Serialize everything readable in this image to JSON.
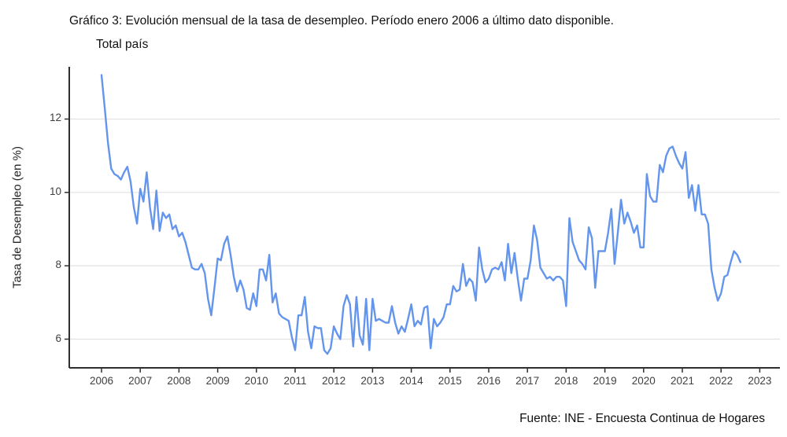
{
  "title": {
    "line1": "Gráfico 3: Evolución mensual de la tasa de desempleo. Período enero 2006 a último dato disponible.",
    "line2": "Total país"
  },
  "source": "Fuente: INE - Encuesta Continua de Hogares",
  "chart_data": {
    "type": "line",
    "title": "Gráfico 3: Evolución mensual de la tasa de desempleo. Período enero 2006 a último dato disponible. Total país",
    "xlabel": "",
    "ylabel": "Tasa de Desempleo (en %)",
    "legend": "none",
    "grid": true,
    "grid_color": "#e2e2e2",
    "axis_color": "#2f2f2f",
    "line_color": "#6495ED",
    "xlim": [
      2005.17,
      2023.5
    ],
    "ylim": [
      5.2,
      13.45
    ],
    "x_ticks": [
      2006,
      2007,
      2008,
      2009,
      2010,
      2011,
      2012,
      2013,
      2014,
      2015,
      2016,
      2017,
      2018,
      2019,
      2020,
      2021,
      2022,
      2023
    ],
    "x_tick_labels": [
      "2006",
      "2007",
      "2008",
      "2009",
      "2010",
      "2011",
      "2012",
      "2013",
      "2014",
      "2015",
      "2016",
      "2017",
      "2018",
      "2019",
      "2020",
      "2021",
      "2022",
      "2023"
    ],
    "y_ticks": [
      6,
      8,
      10,
      12
    ],
    "y_tick_labels": [
      "6",
      "8",
      "10",
      "12"
    ],
    "series": [
      {
        "name": "Tasa de desempleo mensual (%)",
        "start": "2006-01",
        "end": "2022-07",
        "frequency": "monthly",
        "values": [
          13.2,
          12.3,
          11.35,
          10.65,
          10.5,
          10.45,
          10.35,
          10.55,
          10.7,
          10.3,
          9.6,
          9.15,
          10.1,
          9.75,
          10.55,
          9.6,
          9.0,
          10.05,
          8.95,
          9.45,
          9.3,
          9.4,
          9.0,
          9.1,
          8.8,
          8.9,
          8.65,
          8.3,
          7.95,
          7.9,
          7.9,
          8.05,
          7.8,
          7.1,
          6.65,
          7.4,
          8.2,
          8.15,
          8.6,
          8.8,
          8.3,
          7.7,
          7.3,
          7.6,
          7.35,
          6.85,
          6.8,
          7.25,
          6.9,
          7.9,
          7.9,
          7.6,
          8.3,
          7.0,
          7.25,
          6.7,
          6.6,
          6.55,
          6.5,
          6.05,
          5.7,
          6.65,
          6.65,
          7.15,
          6.2,
          5.75,
          6.35,
          6.3,
          6.3,
          5.7,
          5.6,
          5.75,
          6.35,
          6.15,
          6.0,
          6.9,
          7.2,
          6.95,
          5.8,
          7.15,
          6.1,
          5.85,
          7.1,
          5.7,
          7.1,
          6.5,
          6.55,
          6.5,
          6.45,
          6.45,
          6.9,
          6.45,
          6.15,
          6.35,
          6.2,
          6.55,
          6.95,
          6.35,
          6.5,
          6.4,
          6.85,
          6.9,
          5.75,
          6.55,
          6.35,
          6.45,
          6.6,
          6.95,
          6.95,
          7.45,
          7.3,
          7.35,
          8.05,
          7.45,
          7.65,
          7.55,
          7.05,
          8.5,
          7.9,
          7.55,
          7.65,
          7.9,
          7.95,
          7.9,
          8.1,
          7.6,
          8.6,
          7.8,
          8.35,
          7.65,
          7.05,
          7.65,
          7.65,
          8.15,
          9.1,
          8.7,
          7.95,
          7.8,
          7.65,
          7.7,
          7.6,
          7.7,
          7.7,
          7.6,
          6.9,
          9.3,
          8.65,
          8.4,
          8.15,
          8.05,
          7.9,
          9.05,
          8.75,
          7.4,
          8.4,
          8.4,
          8.4,
          8.9,
          9.55,
          8.05,
          8.9,
          9.8,
          9.15,
          9.45,
          9.2,
          8.9,
          9.1,
          8.5,
          8.5,
          10.5,
          9.9,
          9.75,
          9.75,
          10.75,
          10.55,
          11.0,
          11.2,
          11.25,
          11.0,
          10.8,
          10.65,
          11.1,
          9.85,
          10.2,
          9.5,
          10.2,
          9.4,
          9.4,
          9.15,
          7.9,
          7.4,
          7.05,
          7.25,
          7.7,
          7.75,
          8.1,
          8.4,
          8.3,
          8.1
        ]
      }
    ]
  }
}
